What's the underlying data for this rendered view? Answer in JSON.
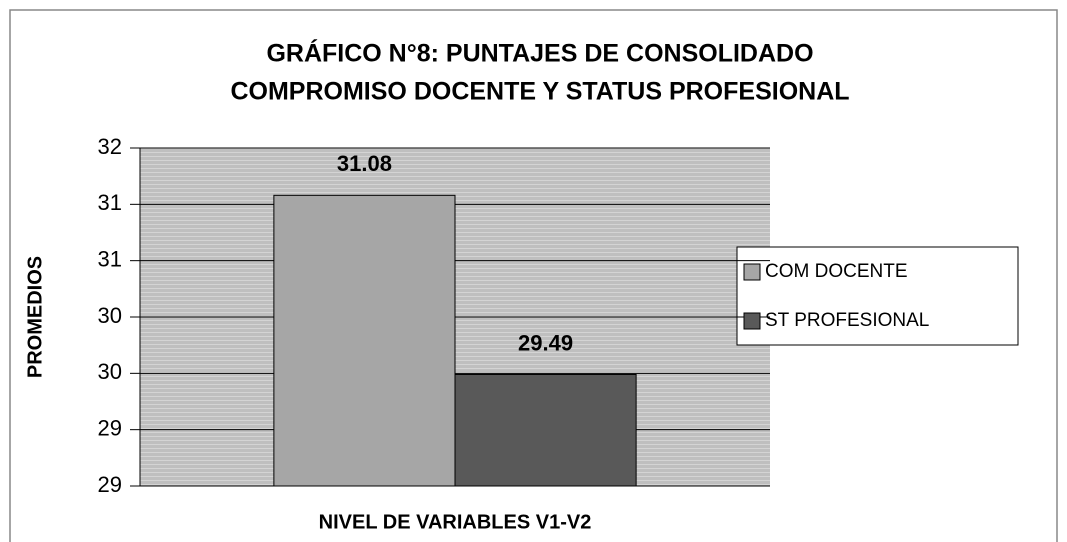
{
  "chart_data": {
    "type": "bar",
    "title": [
      "GRÁFICO N°8: PUNTAJES DE CONSOLIDADO",
      "COMPROMISO DOCENTE Y STATUS PROFESIONAL"
    ],
    "x_label": "NIVEL DE VARIABLES V1-V2",
    "y_label": "PROMEDIOS",
    "categories": [
      null
    ],
    "series": [
      {
        "name": "COM DOCENTE",
        "color": "#a6a6a6",
        "values": [
          31.08
        ]
      },
      {
        "name": "ST PROFESIONAL",
        "color": "#595959",
        "values": [
          29.49
        ]
      }
    ],
    "ylim": [
      28.5,
      31.5
    ],
    "yticks": [
      {
        "value": 28.5,
        "label": "29"
      },
      29,
      {
        "value": 29.5,
        "label": "30"
      },
      30,
      {
        "value": 30.5,
        "label": "31"
      },
      31,
      {
        "value": 31.5,
        "label": "32"
      }
    ],
    "grid": true,
    "legend": "right"
  }
}
